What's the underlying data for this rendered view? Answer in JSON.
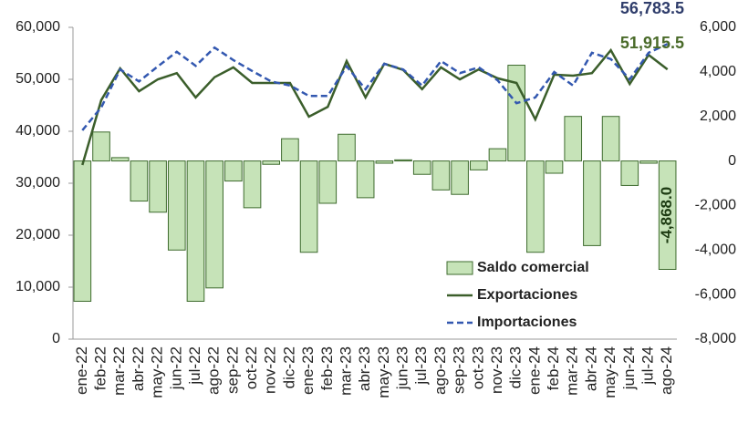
{
  "chart_data": {
    "type": "combo",
    "categories": [
      "ene-22",
      "feb-22",
      "mar-22",
      "abr-22",
      "may-22",
      "jun-22",
      "jul-22",
      "ago-22",
      "sep-22",
      "oct-22",
      "nov-22",
      "dic-22",
      "ene-23",
      "feb-23",
      "mar-23",
      "abr-23",
      "may-23",
      "jun-23",
      "jul-23",
      "ago-23",
      "sep-23",
      "oct-23",
      "nov-23",
      "dic-23",
      "ene-24",
      "feb-24",
      "mar-24",
      "abr-24",
      "may-24",
      "jun-24",
      "jul-24",
      "ago-24"
    ],
    "series": [
      {
        "name": "Saldo comercial",
        "type": "bar",
        "axis": "y2",
        "color": "#c6e3b8",
        "stroke": "#3e6b2e",
        "values": [
          -6300,
          1300,
          150,
          -1800,
          -2300,
          -4000,
          -6300,
          -5700,
          -900,
          -2100,
          -150,
          1000,
          -4100,
          -1900,
          1200,
          -1650,
          -100,
          50,
          -600,
          -1300,
          -1500,
          -400,
          550,
          4300,
          -4100,
          -550,
          2000,
          -3800,
          2000,
          -1100,
          -100,
          -4868.0
        ],
        "value_labels": [
          null,
          null,
          null,
          null,
          null,
          null,
          null,
          null,
          null,
          null,
          null,
          null,
          null,
          null,
          null,
          null,
          null,
          null,
          null,
          null,
          null,
          null,
          null,
          null,
          null,
          null,
          null,
          null,
          null,
          null,
          null,
          "-4,868.0"
        ]
      },
      {
        "name": "Exportaciones",
        "type": "line",
        "color": "#3b5e2b",
        "dash": false,
        "values": [
          33500,
          46000,
          52100,
          47700,
          50000,
          51200,
          46500,
          50400,
          52300,
          49300,
          49300,
          49300,
          42800,
          44700,
          53500,
          46500,
          53000,
          51800,
          48100,
          52300,
          50000,
          51900,
          50200,
          49300,
          42300,
          50900,
          50700,
          51200,
          55600,
          49100,
          54700,
          51915.5
        ],
        "value_labels": [
          null,
          null,
          null,
          null,
          null,
          null,
          null,
          null,
          null,
          null,
          null,
          null,
          null,
          null,
          null,
          null,
          null,
          null,
          null,
          null,
          null,
          null,
          null,
          null,
          null,
          null,
          null,
          null,
          null,
          null,
          null,
          "51,915.5"
        ]
      },
      {
        "name": "Importaciones",
        "type": "line",
        "color": "#3358b0",
        "dash": true,
        "values": [
          40200,
          44600,
          51900,
          49600,
          52500,
          55300,
          52600,
          56100,
          53700,
          51600,
          49600,
          48800,
          46800,
          46800,
          52500,
          48100,
          53000,
          51900,
          48800,
          53500,
          51200,
          52300,
          49800,
          45400,
          46500,
          51400,
          48800,
          55100,
          53900,
          50000,
          55100,
          56783.5
        ],
        "value_labels": [
          null,
          null,
          null,
          null,
          null,
          null,
          null,
          null,
          null,
          null,
          null,
          null,
          null,
          null,
          null,
          null,
          null,
          null,
          null,
          null,
          null,
          null,
          null,
          null,
          null,
          null,
          null,
          null,
          null,
          null,
          null,
          "56,783.5"
        ]
      }
    ],
    "ylim": [
      0,
      60000
    ],
    "yticks": [
      0,
      {
        "value": 10000,
        "label": "10,000"
      },
      {
        "value": 20000,
        "label": "20,000"
      },
      {
        "value": 30000,
        "label": "30,000"
      },
      {
        "value": 40000,
        "label": "40,000"
      },
      {
        "value": 50000,
        "label": "50,000"
      },
      {
        "value": 60000,
        "label": "60,000"
      }
    ],
    "y2lim": [
      -8000,
      6000
    ],
    "y2ticks": [
      {
        "value": -8000,
        "label": "-8,000"
      },
      {
        "value": -6000,
        "label": "-6,000"
      },
      {
        "value": -4000,
        "label": "-4,000"
      },
      {
        "value": -2000,
        "label": "-2,000"
      },
      0,
      {
        "value": 2000,
        "label": "2,000"
      },
      {
        "value": 4000,
        "label": "4,000"
      },
      {
        "value": 6000,
        "label": "6,000"
      }
    ],
    "grid": false,
    "legend": "lower right"
  }
}
